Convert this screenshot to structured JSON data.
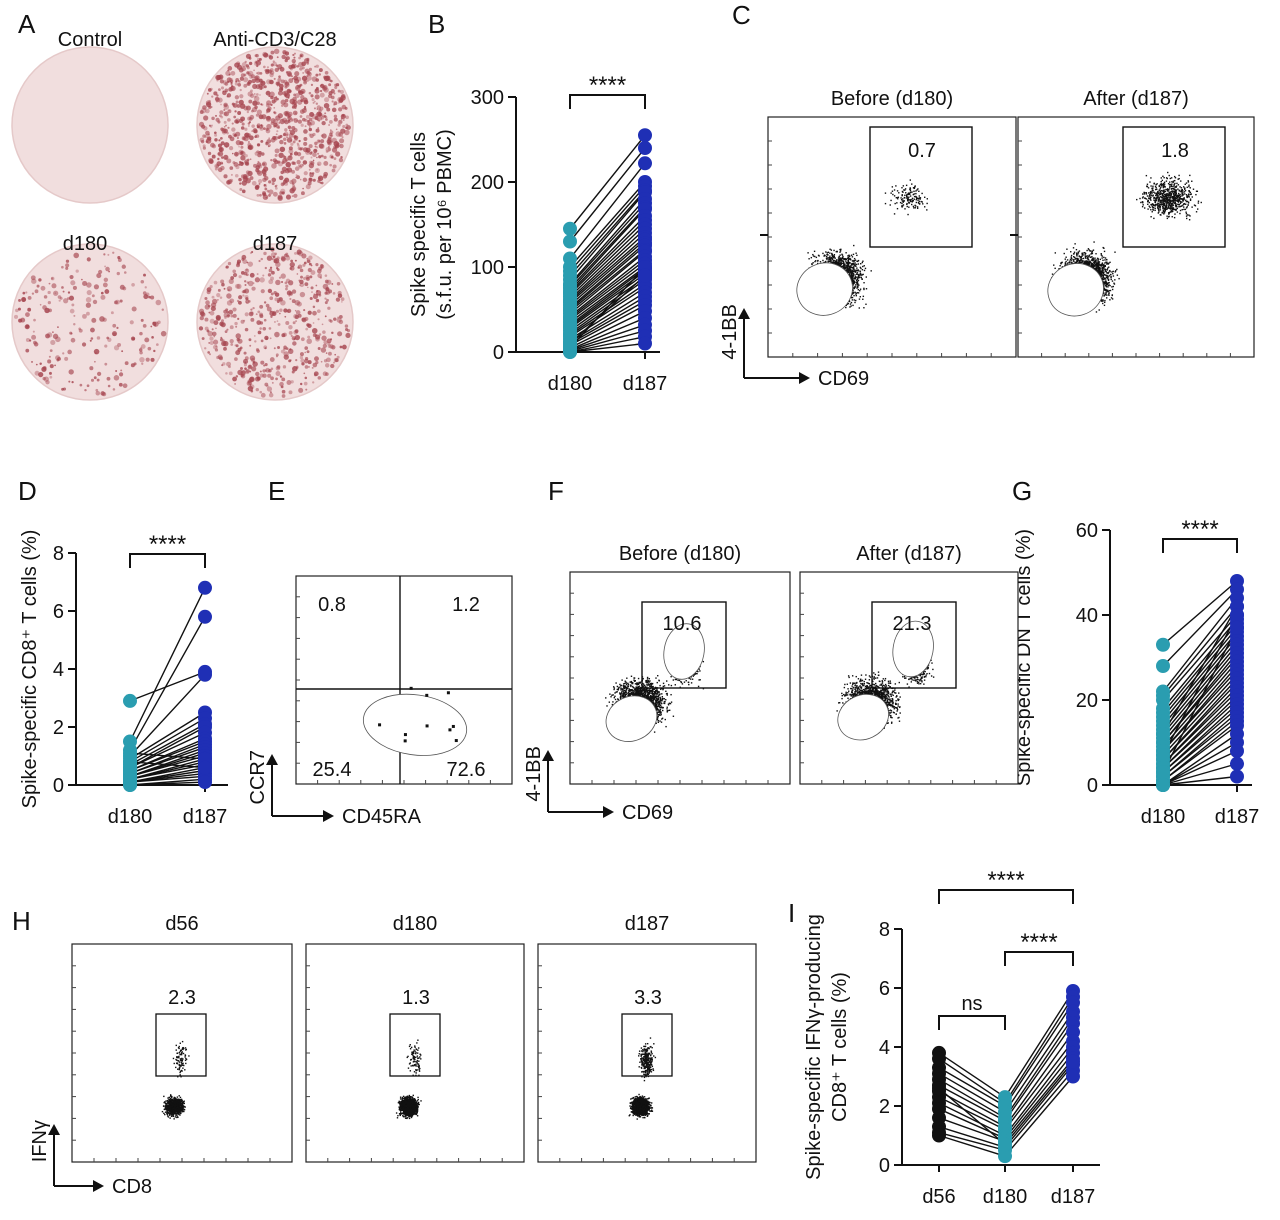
{
  "figure": {
    "panelA": {
      "letter": "A",
      "wells": [
        {
          "label": "Control",
          "density": 0
        },
        {
          "label": "Anti-CD3/C28",
          "density": 1.0
        },
        {
          "label": "d180",
          "density": 0.25
        },
        {
          "label": "d187",
          "density": 0.6
        }
      ],
      "colors": {
        "well_bg": "#f1dede",
        "spot": "#a6454f"
      }
    },
    "panelC": {
      "letter": "C",
      "plots": [
        {
          "title": "Before (d180)",
          "gate": "0.7"
        },
        {
          "title": "After (d187)",
          "gate": "1.8"
        }
      ],
      "xlabel": "CD69",
      "ylabel": "4-1BB"
    },
    "panelE": {
      "letter": "E",
      "quadrants": {
        "ul": "0.8",
        "ur": "1.2",
        "ll": "25.4",
        "lr": "72.6"
      },
      "xlabel": "CD45RA",
      "ylabel": "CCR7"
    },
    "panelF": {
      "letter": "F",
      "plots": [
        {
          "title": "Before (d180)",
          "gate": "10.6"
        },
        {
          "title": "After (d187)",
          "gate": "21.3"
        }
      ],
      "xlabel": "CD69",
      "ylabel": "4-1BB"
    },
    "panelH": {
      "letter": "H",
      "plots": [
        {
          "title": "d56",
          "gate": "2.3"
        },
        {
          "title": "d180",
          "gate": "1.3"
        },
        {
          "title": "d187",
          "gate": "3.3"
        }
      ],
      "xlabel": "CD8",
      "ylabel": "IFNγ"
    }
  },
  "chart_data": [
    {
      "panel": "B",
      "type": "scatter",
      "categories": [
        "d180",
        "d187"
      ],
      "ylabel": "Spike specific T cells",
      "ylabel2": "(s.f.u. per 10⁶ PBMC)",
      "ylim": [
        0,
        300
      ],
      "yticks": [
        0,
        100,
        200,
        300
      ],
      "significance": [
        {
          "from": 0,
          "to": 1,
          "label": "****"
        }
      ],
      "colors": [
        "#2a9db0",
        "#1f2fb5"
      ],
      "pairs": [
        [
          145,
          255
        ],
        [
          130,
          240
        ],
        [
          110,
          222
        ],
        [
          100,
          200
        ],
        [
          95,
          195
        ],
        [
          90,
          190
        ],
        [
          85,
          188
        ],
        [
          80,
          180
        ],
        [
          78,
          175
        ],
        [
          75,
          170
        ],
        [
          72,
          168
        ],
        [
          70,
          160
        ],
        [
          68,
          155
        ],
        [
          65,
          150
        ],
        [
          62,
          145
        ],
        [
          60,
          140
        ],
        [
          58,
          135
        ],
        [
          55,
          132
        ],
        [
          52,
          128
        ],
        [
          50,
          125
        ],
        [
          48,
          120
        ],
        [
          45,
          118
        ],
        [
          42,
          112
        ],
        [
          40,
          108
        ],
        [
          38,
          104
        ],
        [
          35,
          100
        ],
        [
          32,
          98
        ],
        [
          30,
          95
        ],
        [
          28,
          92
        ],
        [
          25,
          88
        ],
        [
          22,
          85
        ],
        [
          20,
          80
        ],
        [
          18,
          76
        ],
        [
          15,
          70
        ],
        [
          12,
          65
        ],
        [
          10,
          60
        ],
        [
          8,
          55
        ],
        [
          5,
          48
        ],
        [
          3,
          40
        ],
        [
          2,
          32
        ],
        [
          1,
          25
        ],
        [
          0,
          18
        ],
        [
          0,
          10
        ],
        [
          5,
          100
        ],
        [
          10,
          90
        ]
      ]
    },
    {
      "panel": "D",
      "type": "scatter",
      "categories": [
        "d180",
        "d187"
      ],
      "ylabel": "Spike-specific CD8⁺ T cells (%)",
      "ylim": [
        0,
        8
      ],
      "yticks": [
        0,
        2,
        4,
        6,
        8
      ],
      "significance": [
        {
          "from": 0,
          "to": 1,
          "label": "****"
        }
      ],
      "colors": [
        "#2a9db0",
        "#1f2fb5"
      ],
      "pairs": [
        [
          1.5,
          6.8
        ],
        [
          1.2,
          5.8
        ],
        [
          2.9,
          3.9
        ],
        [
          1.0,
          3.8
        ],
        [
          0.9,
          2.5
        ],
        [
          0.8,
          2.3
        ],
        [
          0.7,
          2.1
        ],
        [
          0.6,
          2.0
        ],
        [
          0.6,
          1.8
        ],
        [
          0.5,
          1.6
        ],
        [
          0.5,
          1.5
        ],
        [
          0.4,
          1.4
        ],
        [
          0.4,
          1.3
        ],
        [
          0.3,
          1.2
        ],
        [
          0.3,
          1.1
        ],
        [
          0.3,
          1.0
        ],
        [
          0.2,
          0.9
        ],
        [
          0.2,
          0.8
        ],
        [
          0.2,
          0.7
        ],
        [
          0.1,
          0.6
        ],
        [
          0.1,
          0.5
        ],
        [
          0.1,
          0.4
        ],
        [
          0.1,
          0.3
        ],
        [
          0.0,
          0.2
        ],
        [
          0.0,
          0.1
        ],
        [
          1.1,
          0.9
        ],
        [
          0.8,
          0.6
        ]
      ]
    },
    {
      "panel": "G",
      "type": "scatter",
      "categories": [
        "d180",
        "d187"
      ],
      "ylabel": "Spike-specific DN T cells (%)",
      "ylim": [
        0,
        60
      ],
      "yticks": [
        0,
        20,
        40,
        60
      ],
      "significance": [
        {
          "from": 0,
          "to": 1,
          "label": "****"
        }
      ],
      "colors": [
        "#2a9db0",
        "#1f2fb5"
      ],
      "pairs": [
        [
          33,
          48
        ],
        [
          28,
          46
        ],
        [
          22,
          44
        ],
        [
          21,
          42
        ],
        [
          20,
          40
        ],
        [
          18,
          39
        ],
        [
          17,
          38
        ],
        [
          16,
          37
        ],
        [
          15,
          36
        ],
        [
          14,
          35
        ],
        [
          13,
          34
        ],
        [
          12,
          33
        ],
        [
          11,
          32
        ],
        [
          10,
          31
        ],
        [
          10,
          30
        ],
        [
          9,
          29
        ],
        [
          8,
          28
        ],
        [
          8,
          27
        ],
        [
          7,
          26
        ],
        [
          6,
          25
        ],
        [
          6,
          24
        ],
        [
          5,
          23
        ],
        [
          5,
          22
        ],
        [
          4,
          21
        ],
        [
          4,
          20
        ],
        [
          3,
          19
        ],
        [
          3,
          18
        ],
        [
          2,
          17
        ],
        [
          2,
          16
        ],
        [
          1,
          15
        ],
        [
          1,
          14
        ],
        [
          0,
          12
        ],
        [
          0,
          10
        ],
        [
          0,
          8
        ],
        [
          0,
          5
        ],
        [
          0,
          2
        ],
        [
          12,
          42
        ],
        [
          7,
          40
        ],
        [
          3,
          37
        ]
      ]
    },
    {
      "panel": "I",
      "type": "scatter",
      "categories": [
        "d56",
        "d180",
        "d187"
      ],
      "ylabel": "Spike-specific IFNγ-producing",
      "ylabel2": "CD8⁺ T cells (%)",
      "ylim": [
        0,
        8
      ],
      "yticks": [
        0,
        2,
        4,
        6,
        8
      ],
      "significance": [
        {
          "from": 0,
          "to": 2,
          "label": "****",
          "level": 2
        },
        {
          "from": 1,
          "to": 2,
          "label": "****",
          "level": 1
        },
        {
          "from": 0,
          "to": 1,
          "label": "ns",
          "level": 0
        }
      ],
      "colors": [
        "#111111",
        "#2a9db0",
        "#1f2fb5"
      ],
      "triples": [
        [
          3.8,
          2.3,
          5.9
        ],
        [
          3.6,
          2.1,
          5.7
        ],
        [
          3.3,
          2.0,
          5.5
        ],
        [
          3.1,
          1.8,
          5.2
        ],
        [
          2.9,
          1.6,
          5.0
        ],
        [
          2.7,
          1.5,
          4.8
        ],
        [
          2.5,
          1.3,
          4.5
        ],
        [
          2.3,
          1.2,
          4.2
        ],
        [
          2.1,
          1.0,
          4.0
        ],
        [
          1.9,
          0.9,
          3.8
        ],
        [
          1.6,
          0.8,
          3.6
        ],
        [
          1.3,
          0.6,
          3.4
        ],
        [
          1.1,
          0.5,
          3.2
        ],
        [
          1.0,
          0.3,
          3.0
        ],
        [
          2.6,
          0.7,
          3.5
        ]
      ]
    }
  ]
}
